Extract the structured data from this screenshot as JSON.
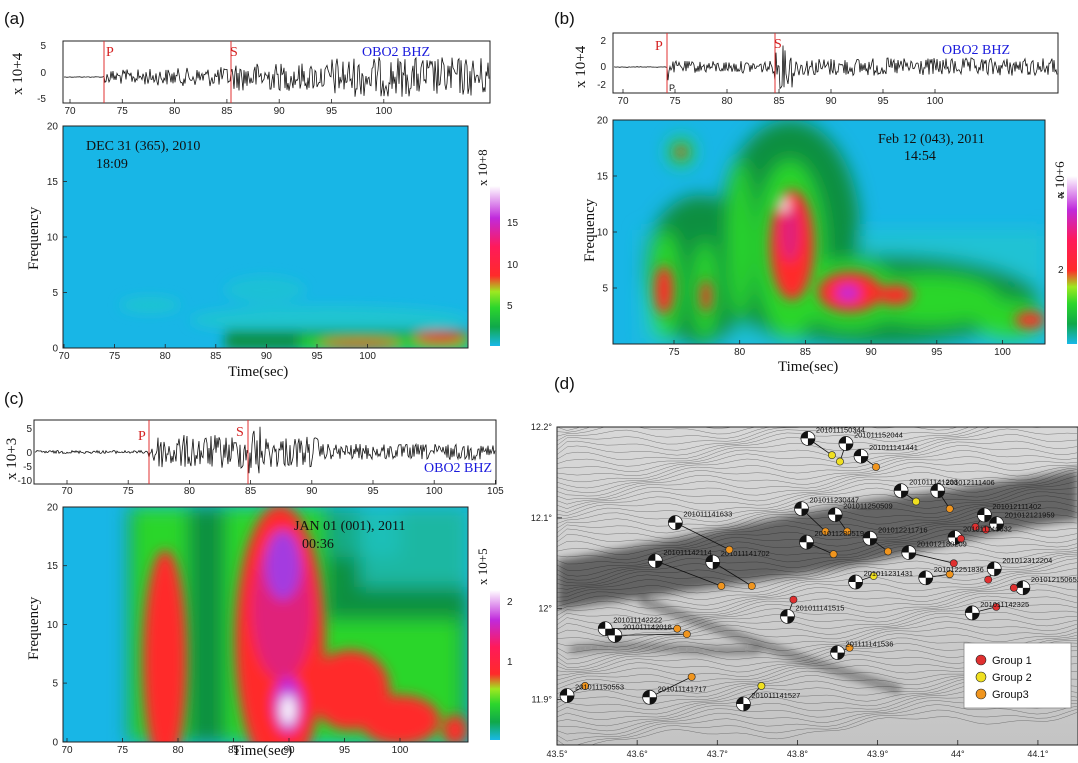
{
  "panels": [
    {
      "label": "(a)",
      "seis_ylabel": "x 10+4",
      "seis_yticks": [
        "5",
        "0",
        "-5"
      ],
      "seis_xticks": [
        "70",
        "75",
        "80",
        "85",
        "90",
        "95",
        "100"
      ],
      "station": "OBO2  BHZ",
      "p_label": "P",
      "s_label": "S",
      "event_date": "DEC 31 (365), 2010",
      "event_time": "18:09",
      "spec_yticks": [
        "20",
        "15",
        "10",
        "5",
        "0"
      ],
      "spec_xticks": [
        "70",
        "75",
        "80",
        "85",
        "90",
        "95",
        "100"
      ],
      "ylabel": "Frequency",
      "xlabel": "Time(sec)",
      "cb_label": "x 10+8",
      "cb_ticks": [
        "15",
        "10",
        "5"
      ]
    },
    {
      "label": "(b)",
      "seis_ylabel": "x 10+4",
      "seis_yticks": [
        "2",
        "0",
        "-2"
      ],
      "seis_xticks": [
        "70",
        "75",
        "80",
        "85",
        "90",
        "95",
        "100"
      ],
      "station": "OBO2  BHZ",
      "p_label": "P",
      "s_label": "S",
      "p_small": "P",
      "event_date": "Feb 12 (043), 2011",
      "event_time": "14:54",
      "spec_yticks": [
        "20",
        "15",
        "10",
        "5"
      ],
      "spec_xticks": [
        "75",
        "80",
        "85",
        "90",
        "95",
        "100"
      ],
      "ylabel": "Frequency",
      "xlabel": "Time(sec)",
      "cb_label": "x 10+6",
      "cb_ticks": [
        "4",
        "2"
      ]
    },
    {
      "label": "(c)",
      "seis_ylabel": "x 10+3",
      "seis_yticks": [
        "5",
        "0",
        "-5",
        "-10"
      ],
      "seis_xticks": [
        "70",
        "75",
        "80",
        "85",
        "90",
        "95",
        "100",
        "105"
      ],
      "station": "OBO2  BHZ",
      "p_label": "P",
      "s_label": "S",
      "event_date": "JAN 01 (001), 2011",
      "event_time": "00:36",
      "spec_yticks": [
        "20",
        "15",
        "10",
        "5",
        "0"
      ],
      "spec_xticks": [
        "70",
        "75",
        "80",
        "85",
        "90",
        "95",
        "100"
      ],
      "ylabel": "Frequency",
      "xlabel": "Time(sec)",
      "cb_label": "x 10+5",
      "cb_ticks": [
        "2",
        "1"
      ]
    }
  ],
  "map": {
    "label": "(d)",
    "lat_ticks": [
      "12.2°",
      "12.1°",
      "12°",
      "11.9°"
    ],
    "lon_ticks": [
      "43.5°",
      "43.6°",
      "43.7°",
      "43.8°",
      "43.9°",
      "44°",
      "44.1°"
    ],
    "legend": [
      {
        "name": "Group 1",
        "color": "#e03030"
      },
      {
        "name": "Group 2",
        "color": "#f0e020"
      },
      {
        "name": "Group3",
        "color": "#f0951e"
      }
    ],
    "events": [
      {
        "id": "201011150344",
        "group": 2,
        "lon": 43.843,
        "lat": 12.169
      },
      {
        "id": "201011152044",
        "group": 2,
        "lon": 43.853,
        "lat": 12.162
      },
      {
        "id": "201011141441",
        "group": 3,
        "lon": 43.898,
        "lat": 12.156
      },
      {
        "id": "201011141238",
        "group": 2,
        "lon": 43.948,
        "lat": 12.118
      },
      {
        "id": "201012111406",
        "group": 3,
        "lon": 43.99,
        "lat": 12.11
      },
      {
        "id": "201012111402",
        "group": 1,
        "lon": 44.022,
        "lat": 12.09
      },
      {
        "id": "201012121959",
        "group": 1,
        "lon": 44.035,
        "lat": 12.087
      },
      {
        "id": "201011140632",
        "group": 1,
        "lon": 44.004,
        "lat": 12.077
      },
      {
        "id": "201011230447",
        "group": 3,
        "lon": 43.835,
        "lat": 12.085
      },
      {
        "id": "201011250509",
        "group": 3,
        "lon": 43.862,
        "lat": 12.085
      },
      {
        "id": "201012211716",
        "group": 3,
        "lon": 43.913,
        "lat": 12.063
      },
      {
        "id": "201011280519",
        "group": 3,
        "lon": 43.845,
        "lat": 12.06
      },
      {
        "id": "201012180209",
        "group": 1,
        "lon": 43.995,
        "lat": 12.05
      },
      {
        "id": "201012251836",
        "group": 3,
        "lon": 43.99,
        "lat": 12.038
      },
      {
        "id": "201012312204",
        "group": 1,
        "lon": 44.038,
        "lat": 12.032
      },
      {
        "id": "201012150652",
        "group": 1,
        "lon": 44.07,
        "lat": 12.023
      },
      {
        "id": "201011142325",
        "group": 1,
        "lon": 44.048,
        "lat": 12.002
      },
      {
        "id": "201011231431",
        "group": 2,
        "lon": 43.895,
        "lat": 12.036
      },
      {
        "id": "201011141702",
        "group": 3,
        "lon": 43.743,
        "lat": 12.025
      },
      {
        "id": "201011141633",
        "group": 3,
        "lon": 43.715,
        "lat": 12.065
      },
      {
        "id": "201011142114",
        "group": 3,
        "lon": 43.705,
        "lat": 12.025
      },
      {
        "id": "201011142222",
        "group": 3,
        "lon": 43.65,
        "lat": 11.978
      },
      {
        "id": "201011142018",
        "group": 3,
        "lon": 43.662,
        "lat": 11.972
      },
      {
        "id": "201111141536",
        "group": 3,
        "lon": 43.865,
        "lat": 11.957
      },
      {
        "id": "201011141515",
        "group": 1,
        "lon": 43.795,
        "lat": 12.01
      },
      {
        "id": "201011141527",
        "group": 2,
        "lon": 43.755,
        "lat": 11.915
      },
      {
        "id": "201011141717",
        "group": 3,
        "lon": 43.668,
        "lat": 11.925
      },
      {
        "id": "201011150553",
        "group": 3,
        "lon": 43.535,
        "lat": 11.915
      }
    ]
  }
}
